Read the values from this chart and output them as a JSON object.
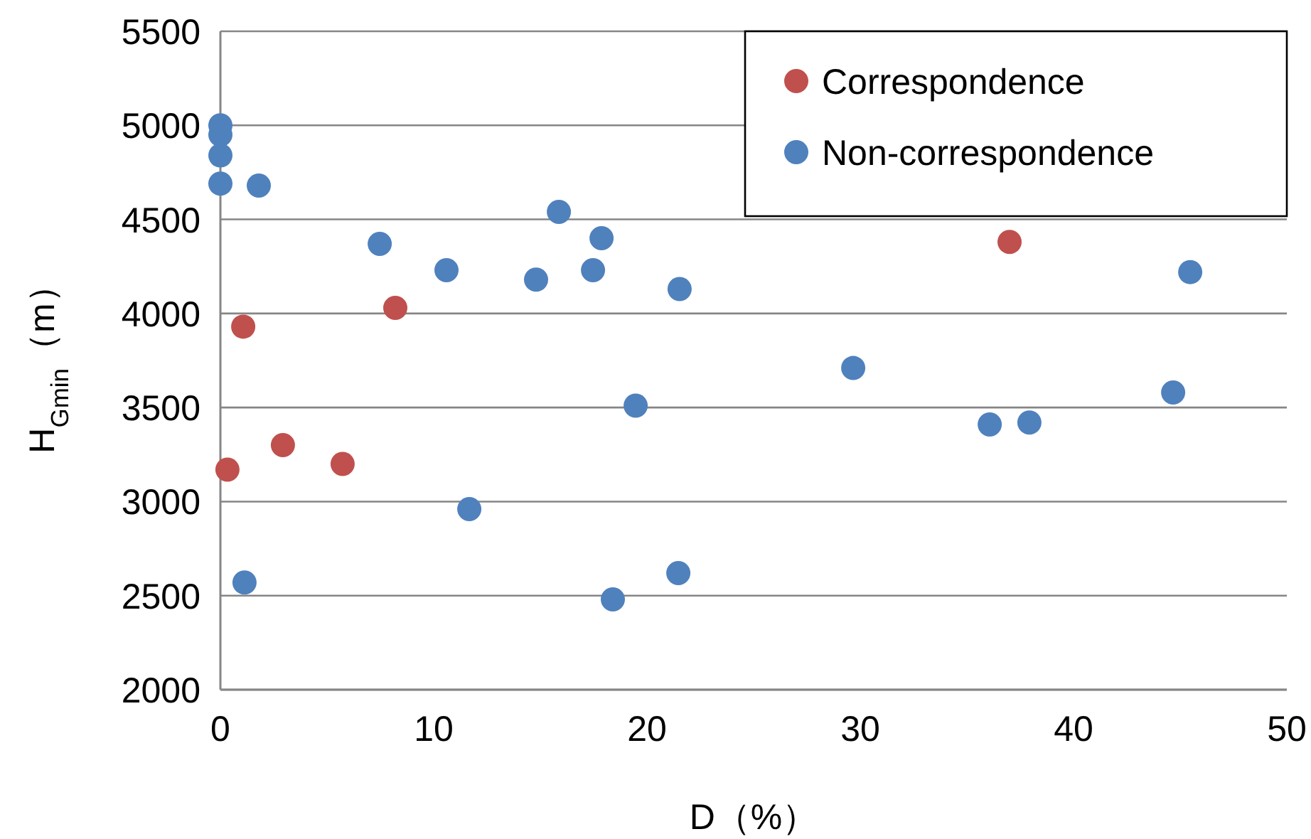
{
  "chart_data": {
    "type": "scatter",
    "xlabel": "D（%）",
    "ylabel": "H$_{Gmin}$（m）",
    "xlim": [
      0,
      50
    ],
    "xticks": [
      0,
      10,
      20,
      30,
      40,
      50
    ],
    "ylim": [
      2000,
      5500
    ],
    "yticks": [
      2000,
      2500,
      3000,
      3500,
      4000,
      4500,
      5000,
      5500
    ],
    "grid": "y",
    "legend": "top right",
    "marker": "circle",
    "series": [
      {
        "name": "Correspondence",
        "color": "#c0504d",
        "x": [
          0.33,
          1.07,
          2.93,
          5.73,
          8.2,
          37.0
        ],
        "values": [
          3170,
          3930,
          3300,
          3200,
          4030,
          4380
        ]
      },
      {
        "name": "Non-correspondence",
        "color": "#4f81bd",
        "x": [
          0,
          0,
          0,
          0,
          1.8,
          1.13,
          7.47,
          10.6,
          11.67,
          14.8,
          15.87,
          17.47,
          17.87,
          18.4,
          19.47,
          21.53,
          21.47,
          29.67,
          36.07,
          37.93,
          44.67,
          45.47
        ],
        "values": [
          5000,
          4950,
          4840,
          4690,
          4680,
          2570,
          4370,
          4230,
          2960,
          4180,
          4540,
          4230,
          4400,
          2480,
          3510,
          4130,
          2620,
          3710,
          3410,
          3420,
          3580,
          4220
        ]
      }
    ]
  }
}
